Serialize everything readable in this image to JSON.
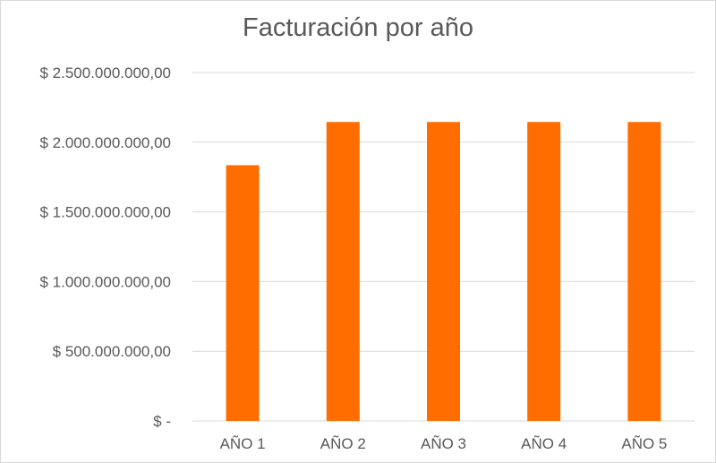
{
  "chart_data": {
    "type": "bar",
    "title": "Facturación por año",
    "categories": [
      "AÑO 1",
      "AÑO 2",
      "AÑO 3",
      "AÑO 4",
      "AÑO 5"
    ],
    "values": [
      1835000000,
      2145000000,
      2145000000,
      2145000000,
      2145000000
    ],
    "yticks": [
      0,
      500000000,
      1000000000,
      1500000000,
      2000000000,
      2500000000
    ],
    "ytick_labels": [
      "$ -",
      "$ 500.000.000,00",
      "$ 1.000.000.000,00",
      "$ 1.500.000.000,00",
      "$ 2.000.000.000,00",
      "$ 2.500.000.000,00"
    ],
    "ylim": [
      0,
      2500000000
    ],
    "grid": true,
    "legend": "none",
    "bar_color": "#ff6d00"
  }
}
